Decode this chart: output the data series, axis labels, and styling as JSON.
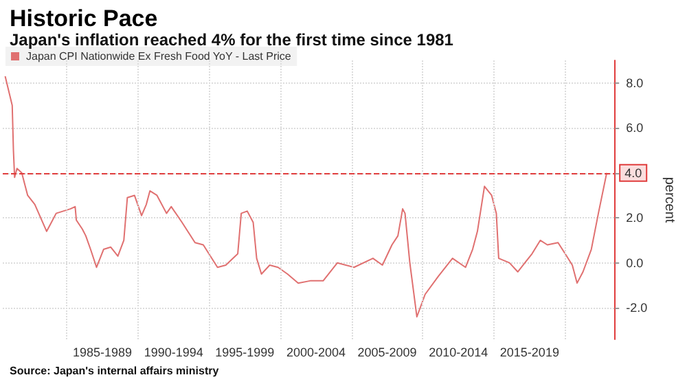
{
  "chart_data": {
    "type": "line",
    "title": "Historic Pace",
    "subtitle": "Japan's inflation reached 4% for the first time since 1981",
    "ylabel": "percent",
    "xlim": [
      "1980-07",
      "2023-07"
    ],
    "ylim": [
      -3.4,
      9.0
    ],
    "xticks": [
      {
        "value": "1985-01",
        "label": null
      },
      {
        "value": "1987-07",
        "label": "1985-1989"
      },
      {
        "value": "1990-01",
        "label": null
      },
      {
        "value": "1992-07",
        "label": "1990-1994"
      },
      {
        "value": "1995-01",
        "label": null
      },
      {
        "value": "1997-07",
        "label": "1995-1999"
      },
      {
        "value": "2000-01",
        "label": null
      },
      {
        "value": "2002-07",
        "label": "2000-2004"
      },
      {
        "value": "2005-01",
        "label": null
      },
      {
        "value": "2007-07",
        "label": "2005-2009"
      },
      {
        "value": "2010-01",
        "label": null
      },
      {
        "value": "2012-07",
        "label": "2010-2014"
      },
      {
        "value": "2015-01",
        "label": null
      },
      {
        "value": "2017-07",
        "label": "2015-2019"
      },
      {
        "value": "2020-01",
        "label": null
      }
    ],
    "yticks": [
      {
        "value": -2,
        "label": "-2.0"
      },
      {
        "value": 0,
        "label": "0.0"
      },
      {
        "value": 2,
        "label": "2.0"
      },
      {
        "value": 4,
        "label": "4.0"
      },
      {
        "value": 6,
        "label": "6.0"
      },
      {
        "value": 8,
        "label": "8.0"
      }
    ],
    "grid": true,
    "legend": "top left",
    "marker": "none",
    "line_style": "solid",
    "ref_lines": [
      {
        "axis": "y",
        "value": 4,
        "label": "4.0",
        "color": "#e03c3c",
        "line_style": "dashed"
      }
    ],
    "annotations": [
      "Source: Japan's internal affairs ministry"
    ],
    "series": [
      {
        "name": "Japan CPI Nationwide Ex Fresh Food YoY - Last Price",
        "color": "#e07070",
        "x": [
          "1980-09",
          "1981-03",
          "1981-04",
          "1981-05",
          "1981-07",
          "1981-11",
          "1982-04",
          "1982-10",
          "1983-08",
          "1983-11",
          "1984-04",
          "1985-04",
          "1985-08",
          "1985-09",
          "1986-02",
          "1986-05",
          "1986-09",
          "1987-02",
          "1987-08",
          "1988-02",
          "1988-08",
          "1989-01",
          "1989-04",
          "1989-10",
          "1990-04",
          "1990-08",
          "1990-11",
          "1991-05",
          "1992-01",
          "1992-05",
          "1993-02",
          "1994-01",
          "1994-08",
          "1995-08",
          "1996-03",
          "1997-01",
          "1997-04",
          "1997-09",
          "1998-02",
          "1998-05",
          "1998-09",
          "1999-04",
          "1999-11",
          "2000-07",
          "2001-04",
          "2002-02",
          "2003-01",
          "2004-01",
          "2005-03",
          "2006-07",
          "2007-03",
          "2007-11",
          "2008-04",
          "2008-08",
          "2008-10",
          "2009-02",
          "2009-08",
          "2010-03",
          "2011-02",
          "2012-02",
          "2013-01",
          "2013-07",
          "2013-11",
          "2014-05",
          "2014-11",
          "2015-03",
          "2015-05",
          "2016-02",
          "2016-09",
          "2017-09",
          "2018-04",
          "2018-10",
          "2019-07",
          "2020-01",
          "2020-07",
          "2020-11",
          "2021-04",
          "2021-11",
          "2022-05",
          "2022-12"
        ],
        "values": [
          8.3,
          7.0,
          5.0,
          3.8,
          4.2,
          4.0,
          3.0,
          2.6,
          1.4,
          1.7,
          2.2,
          2.4,
          2.5,
          1.9,
          1.5,
          1.2,
          0.6,
          -0.2,
          0.6,
          0.7,
          0.3,
          1.0,
          2.9,
          3.0,
          2.1,
          2.6,
          3.2,
          3.0,
          2.2,
          2.5,
          1.8,
          0.9,
          0.8,
          -0.2,
          -0.1,
          0.4,
          2.2,
          2.3,
          1.8,
          0.2,
          -0.5,
          -0.1,
          -0.2,
          -0.5,
          -0.9,
          -0.8,
          -0.8,
          0.0,
          -0.2,
          0.2,
          -0.1,
          0.8,
          1.2,
          2.4,
          2.2,
          0.0,
          -2.4,
          -1.4,
          -0.6,
          0.2,
          -0.2,
          0.6,
          1.4,
          3.4,
          3.0,
          2.2,
          0.2,
          0.0,
          -0.4,
          0.4,
          1.0,
          0.8,
          0.9,
          0.4,
          -0.1,
          -0.9,
          -0.4,
          0.6,
          2.2,
          4.0
        ]
      }
    ]
  }
}
